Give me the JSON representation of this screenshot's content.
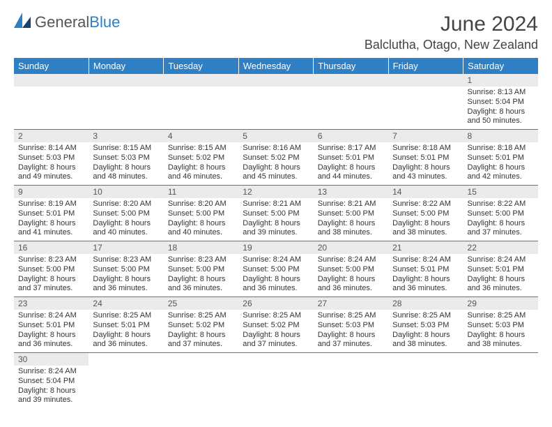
{
  "logo": {
    "general": "General",
    "blue": "Blue"
  },
  "title": "June 2024",
  "location": "Balclutha, Otago, New Zealand",
  "colors": {
    "header_bg": "#2f7fc4",
    "header_text": "#ffffff",
    "daynum_bg": "#ebebeb",
    "border": "#2f7fc4",
    "text": "#333333"
  },
  "weekdays": [
    "Sunday",
    "Monday",
    "Tuesday",
    "Wednesday",
    "Thursday",
    "Friday",
    "Saturday"
  ],
  "weeks": [
    [
      null,
      null,
      null,
      null,
      null,
      null,
      {
        "n": "1",
        "sunrise": "8:13 AM",
        "sunset": "5:04 PM",
        "daylight": "8 hours and 50 minutes."
      }
    ],
    [
      {
        "n": "2",
        "sunrise": "8:14 AM",
        "sunset": "5:03 PM",
        "daylight": "8 hours and 49 minutes."
      },
      {
        "n": "3",
        "sunrise": "8:15 AM",
        "sunset": "5:03 PM",
        "daylight": "8 hours and 48 minutes."
      },
      {
        "n": "4",
        "sunrise": "8:15 AM",
        "sunset": "5:02 PM",
        "daylight": "8 hours and 46 minutes."
      },
      {
        "n": "5",
        "sunrise": "8:16 AM",
        "sunset": "5:02 PM",
        "daylight": "8 hours and 45 minutes."
      },
      {
        "n": "6",
        "sunrise": "8:17 AM",
        "sunset": "5:01 PM",
        "daylight": "8 hours and 44 minutes."
      },
      {
        "n": "7",
        "sunrise": "8:18 AM",
        "sunset": "5:01 PM",
        "daylight": "8 hours and 43 minutes."
      },
      {
        "n": "8",
        "sunrise": "8:18 AM",
        "sunset": "5:01 PM",
        "daylight": "8 hours and 42 minutes."
      }
    ],
    [
      {
        "n": "9",
        "sunrise": "8:19 AM",
        "sunset": "5:01 PM",
        "daylight": "8 hours and 41 minutes."
      },
      {
        "n": "10",
        "sunrise": "8:20 AM",
        "sunset": "5:00 PM",
        "daylight": "8 hours and 40 minutes."
      },
      {
        "n": "11",
        "sunrise": "8:20 AM",
        "sunset": "5:00 PM",
        "daylight": "8 hours and 40 minutes."
      },
      {
        "n": "12",
        "sunrise": "8:21 AM",
        "sunset": "5:00 PM",
        "daylight": "8 hours and 39 minutes."
      },
      {
        "n": "13",
        "sunrise": "8:21 AM",
        "sunset": "5:00 PM",
        "daylight": "8 hours and 38 minutes."
      },
      {
        "n": "14",
        "sunrise": "8:22 AM",
        "sunset": "5:00 PM",
        "daylight": "8 hours and 38 minutes."
      },
      {
        "n": "15",
        "sunrise": "8:22 AM",
        "sunset": "5:00 PM",
        "daylight": "8 hours and 37 minutes."
      }
    ],
    [
      {
        "n": "16",
        "sunrise": "8:23 AM",
        "sunset": "5:00 PM",
        "daylight": "8 hours and 37 minutes."
      },
      {
        "n": "17",
        "sunrise": "8:23 AM",
        "sunset": "5:00 PM",
        "daylight": "8 hours and 36 minutes."
      },
      {
        "n": "18",
        "sunrise": "8:23 AM",
        "sunset": "5:00 PM",
        "daylight": "8 hours and 36 minutes."
      },
      {
        "n": "19",
        "sunrise": "8:24 AM",
        "sunset": "5:00 PM",
        "daylight": "8 hours and 36 minutes."
      },
      {
        "n": "20",
        "sunrise": "8:24 AM",
        "sunset": "5:00 PM",
        "daylight": "8 hours and 36 minutes."
      },
      {
        "n": "21",
        "sunrise": "8:24 AM",
        "sunset": "5:01 PM",
        "daylight": "8 hours and 36 minutes."
      },
      {
        "n": "22",
        "sunrise": "8:24 AM",
        "sunset": "5:01 PM",
        "daylight": "8 hours and 36 minutes."
      }
    ],
    [
      {
        "n": "23",
        "sunrise": "8:24 AM",
        "sunset": "5:01 PM",
        "daylight": "8 hours and 36 minutes."
      },
      {
        "n": "24",
        "sunrise": "8:25 AM",
        "sunset": "5:01 PM",
        "daylight": "8 hours and 36 minutes."
      },
      {
        "n": "25",
        "sunrise": "8:25 AM",
        "sunset": "5:02 PM",
        "daylight": "8 hours and 37 minutes."
      },
      {
        "n": "26",
        "sunrise": "8:25 AM",
        "sunset": "5:02 PM",
        "daylight": "8 hours and 37 minutes."
      },
      {
        "n": "27",
        "sunrise": "8:25 AM",
        "sunset": "5:03 PM",
        "daylight": "8 hours and 37 minutes."
      },
      {
        "n": "28",
        "sunrise": "8:25 AM",
        "sunset": "5:03 PM",
        "daylight": "8 hours and 38 minutes."
      },
      {
        "n": "29",
        "sunrise": "8:25 AM",
        "sunset": "5:03 PM",
        "daylight": "8 hours and 38 minutes."
      }
    ],
    [
      {
        "n": "30",
        "sunrise": "8:24 AM",
        "sunset": "5:04 PM",
        "daylight": "8 hours and 39 minutes."
      },
      null,
      null,
      null,
      null,
      null,
      null
    ]
  ],
  "labels": {
    "sunrise": "Sunrise: ",
    "sunset": "Sunset: ",
    "daylight": "Daylight: "
  }
}
